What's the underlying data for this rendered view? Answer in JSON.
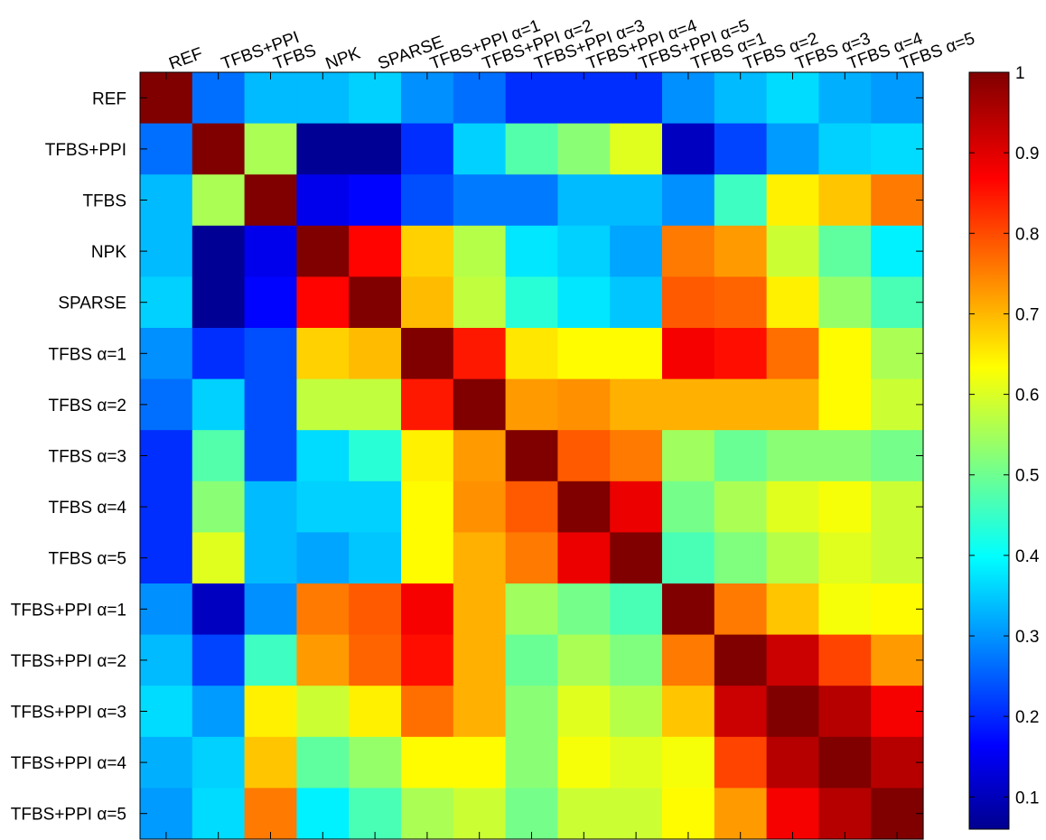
{
  "chart_data": {
    "type": "heatmap",
    "title": "",
    "xlabel": "",
    "ylabel": "",
    "labels": [
      "REF",
      "TFBS+PPI",
      "TFBS",
      "NPK",
      "SPARSE",
      "TFBS+PPI α=1",
      "TFBS+PPI α=2",
      "TFBS+PPI α=3",
      "TFBS+PPI α=4",
      "TFBS+PPI α=5",
      "TFBS α=1",
      "TFBS α=2",
      "TFBS α=3",
      "TFBS α=4",
      "TFBS α=5"
    ],
    "x_labels": [
      "REF",
      "TFBS+PPI",
      "TFBS",
      "NPK",
      "SPARSE",
      "TFBS+PPI α=1",
      "TFBS+PPI α=2",
      "TFBS+PPI α=3",
      "TFBS+PPI α=4",
      "TFBS+PPI α=5",
      "TFBS α=1",
      "TFBS α=2",
      "TFBS α=3",
      "TFBS α=4",
      "TFBS α=5"
    ],
    "y_labels": [
      "REF",
      "TFBS+PPI",
      "TFBS",
      "NPK",
      "SPARSE",
      "TFBS α=1",
      "TFBS α=2",
      "TFBS α=3",
      "TFBS α=4",
      "TFBS α=5",
      "TFBS+PPI α=1",
      "TFBS+PPI α=2",
      "TFBS+PPI α=3",
      "TFBS+PPI α=4",
      "TFBS+PPI α=5"
    ],
    "matrix": [
      [
        1.0,
        0.28,
        0.35,
        0.35,
        0.37,
        0.31,
        0.28,
        0.22,
        0.22,
        0.22,
        0.31,
        0.35,
        0.38,
        0.34,
        0.32
      ],
      [
        0.28,
        1.0,
        0.57,
        0.08,
        0.08,
        0.22,
        0.37,
        0.49,
        0.54,
        0.62,
        0.12,
        0.24,
        0.32,
        0.37,
        0.38
      ],
      [
        0.35,
        0.57,
        1.0,
        0.16,
        0.18,
        0.25,
        0.29,
        0.29,
        0.35,
        0.35,
        0.31,
        0.47,
        0.66,
        0.7,
        0.77
      ],
      [
        0.35,
        0.08,
        0.16,
        1.0,
        0.88,
        0.69,
        0.58,
        0.39,
        0.37,
        0.33,
        0.77,
        0.74,
        0.6,
        0.5,
        0.4
      ],
      [
        0.37,
        0.08,
        0.18,
        0.88,
        1.0,
        0.71,
        0.59,
        0.45,
        0.39,
        0.36,
        0.8,
        0.79,
        0.66,
        0.55,
        0.48
      ],
      [
        0.31,
        0.22,
        0.25,
        0.69,
        0.71,
        1.0,
        0.86,
        0.67,
        0.65,
        0.65,
        0.89,
        0.87,
        0.78,
        0.65,
        0.57
      ],
      [
        0.28,
        0.37,
        0.25,
        0.59,
        0.59,
        0.86,
        1.0,
        0.74,
        0.75,
        0.72,
        0.72,
        0.72,
        0.72,
        0.65,
        0.6
      ],
      [
        0.22,
        0.49,
        0.25,
        0.38,
        0.45,
        0.66,
        0.74,
        1.0,
        0.8,
        0.77,
        0.56,
        0.51,
        0.54,
        0.54,
        0.52
      ],
      [
        0.22,
        0.54,
        0.35,
        0.37,
        0.37,
        0.65,
        0.75,
        0.8,
        1.0,
        0.9,
        0.52,
        0.57,
        0.62,
        0.64,
        0.6
      ],
      [
        0.22,
        0.62,
        0.35,
        0.33,
        0.36,
        0.65,
        0.72,
        0.77,
        0.9,
        1.0,
        0.48,
        0.53,
        0.58,
        0.62,
        0.6
      ],
      [
        0.31,
        0.12,
        0.31,
        0.77,
        0.8,
        0.89,
        0.72,
        0.56,
        0.52,
        0.48,
        1.0,
        0.77,
        0.7,
        0.64,
        0.65
      ],
      [
        0.35,
        0.24,
        0.47,
        0.74,
        0.79,
        0.87,
        0.72,
        0.51,
        0.57,
        0.53,
        0.77,
        1.0,
        0.93,
        0.82,
        0.74
      ],
      [
        0.38,
        0.32,
        0.66,
        0.6,
        0.66,
        0.78,
        0.72,
        0.54,
        0.62,
        0.58,
        0.7,
        0.93,
        1.0,
        0.95,
        0.89
      ],
      [
        0.34,
        0.37,
        0.7,
        0.5,
        0.55,
        0.65,
        0.65,
        0.54,
        0.64,
        0.62,
        0.64,
        0.82,
        0.95,
        1.0,
        0.95
      ],
      [
        0.32,
        0.38,
        0.77,
        0.4,
        0.48,
        0.57,
        0.6,
        0.52,
        0.6,
        0.6,
        0.65,
        0.74,
        0.89,
        0.95,
        1.0
      ]
    ],
    "colormap": "jet",
    "colorbar": {
      "range": [
        0.06,
        1.0
      ],
      "ticks": [
        0.1,
        0.2,
        0.3,
        0.4,
        0.5,
        0.6,
        0.7,
        0.8,
        0.9,
        1
      ],
      "tick_labels": [
        "0.1",
        "0.2",
        "0.3",
        "0.4",
        "0.5",
        "0.6",
        "0.7",
        "0.8",
        "0.9",
        "1"
      ],
      "placement": "right"
    },
    "x_tick_position": "top",
    "grid": false
  }
}
